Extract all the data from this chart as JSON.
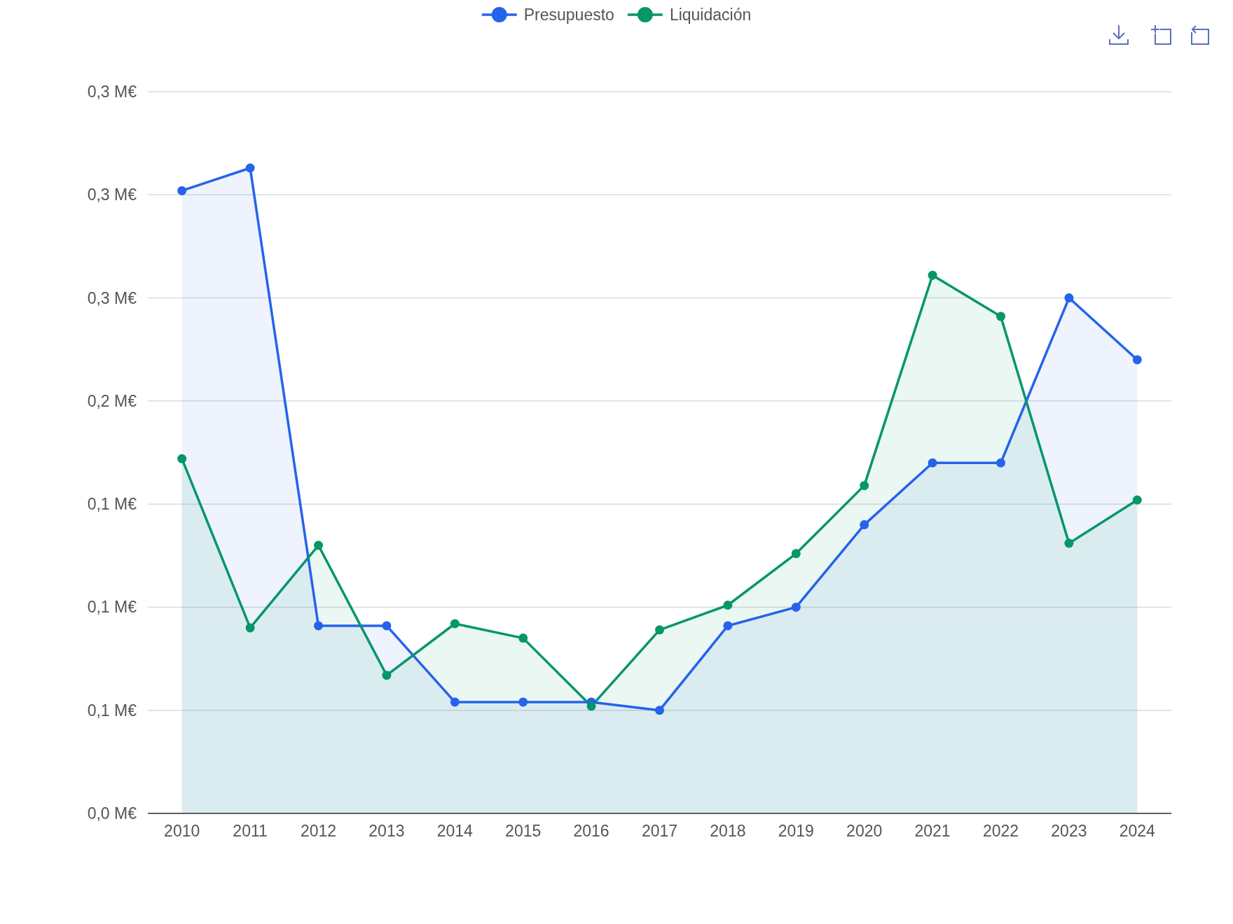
{
  "chart_data": {
    "type": "area",
    "categories": [
      "2010",
      "2011",
      "2012",
      "2013",
      "2014",
      "2015",
      "2016",
      "2017",
      "2018",
      "2019",
      "2020",
      "2021",
      "2022",
      "2023",
      "2024"
    ],
    "series": [
      {
        "name": "Presupuesto",
        "color": "#2563eb",
        "values": [
          0.302,
          0.313,
          0.091,
          0.091,
          0.054,
          0.054,
          0.054,
          0.05,
          0.091,
          0.1,
          0.14,
          0.17,
          0.17,
          0.25,
          0.22
        ]
      },
      {
        "name": "Liquidación",
        "color": "#059669",
        "values": [
          0.172,
          0.09,
          0.13,
          0.067,
          0.092,
          0.085,
          0.052,
          0.089,
          0.101,
          0.126,
          0.159,
          0.261,
          0.241,
          0.131,
          0.152
        ]
      }
    ],
    "ylim": [
      0,
      0.35
    ],
    "yticks": [
      {
        "value": 0,
        "label": "0,0 M€"
      },
      {
        "value": 0.05,
        "label": "0,1 M€"
      },
      {
        "value": 0.1,
        "label": "0,1 M€"
      },
      {
        "value": 0.15,
        "label": "0,1 M€"
      },
      {
        "value": 0.2,
        "label": "0,2 M€"
      },
      {
        "value": 0.25,
        "label": "0,3 M€"
      },
      {
        "value": 0.3,
        "label": "0,3 M€"
      },
      {
        "value": 0.35,
        "label": "0,3 M€"
      }
    ],
    "grid": "y",
    "legend": "top",
    "marker": "circle"
  }
}
